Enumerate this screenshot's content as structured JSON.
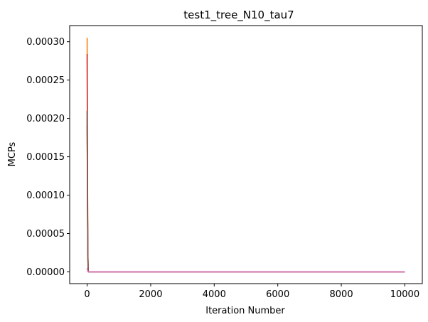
{
  "chart_data": {
    "type": "line",
    "title": "test1_tree_N10_tau7",
    "xlabel": "Iteration Number",
    "ylabel": "MCPs",
    "xlim": [
      -550,
      10550
    ],
    "ylim": [
      -1.53e-05,
      0.000321
    ],
    "xticks": [
      0,
      2000,
      4000,
      6000,
      8000,
      10000
    ],
    "xtick_labels": [
      "0",
      "2000",
      "4000",
      "6000",
      "8000",
      "10000"
    ],
    "yticks": [
      0,
      5e-05,
      0.0001,
      0.00015,
      0.0002,
      0.00025,
      0.0003
    ],
    "ytick_labels": [
      "0.00000",
      "0.00005",
      "0.00010",
      "0.00015",
      "0.00020",
      "0.00025",
      "0.00030"
    ],
    "grid": false,
    "legend": "none",
    "series": [
      {
        "color": "#1f77b4",
        "x": [
          0,
          10,
          20,
          30,
          40,
          10000
        ],
        "y": [
          0.00021,
          0.0001,
          3e-05,
          5e-06,
          0,
          0
        ]
      },
      {
        "color": "#ff7f0e",
        "x": [
          0,
          10,
          20,
          30,
          40,
          10000
        ],
        "y": [
          0.000305,
          0.00015,
          4e-05,
          6e-06,
          0,
          0
        ]
      },
      {
        "color": "#2ca02c",
        "x": [
          0,
          10,
          20,
          30,
          40,
          10000
        ],
        "y": [
          0.00019,
          9e-05,
          2.5e-05,
          4e-06,
          0,
          0
        ]
      },
      {
        "color": "#d62728",
        "x": [
          0,
          10,
          20,
          30,
          40,
          10000
        ],
        "y": [
          0.000284,
          0.00014,
          3.5e-05,
          5e-06,
          0,
          0
        ]
      },
      {
        "color": "#9467bd",
        "x": [
          0,
          10,
          20,
          30,
          40,
          10000
        ],
        "y": [
          0.0002,
          0.0001,
          3e-05,
          5e-06,
          0,
          0
        ]
      },
      {
        "color": "#8c564b",
        "x": [
          0,
          10,
          20,
          30,
          40,
          10000
        ],
        "y": [
          0.00021,
          0.0001,
          3e-05,
          5e-06,
          0,
          0
        ]
      },
      {
        "color": "#e377c2",
        "x": [
          0,
          10,
          20,
          30,
          40,
          10000
        ],
        "y": [
          5e-06,
          2e-06,
          1e-06,
          0,
          0,
          0
        ]
      }
    ]
  }
}
